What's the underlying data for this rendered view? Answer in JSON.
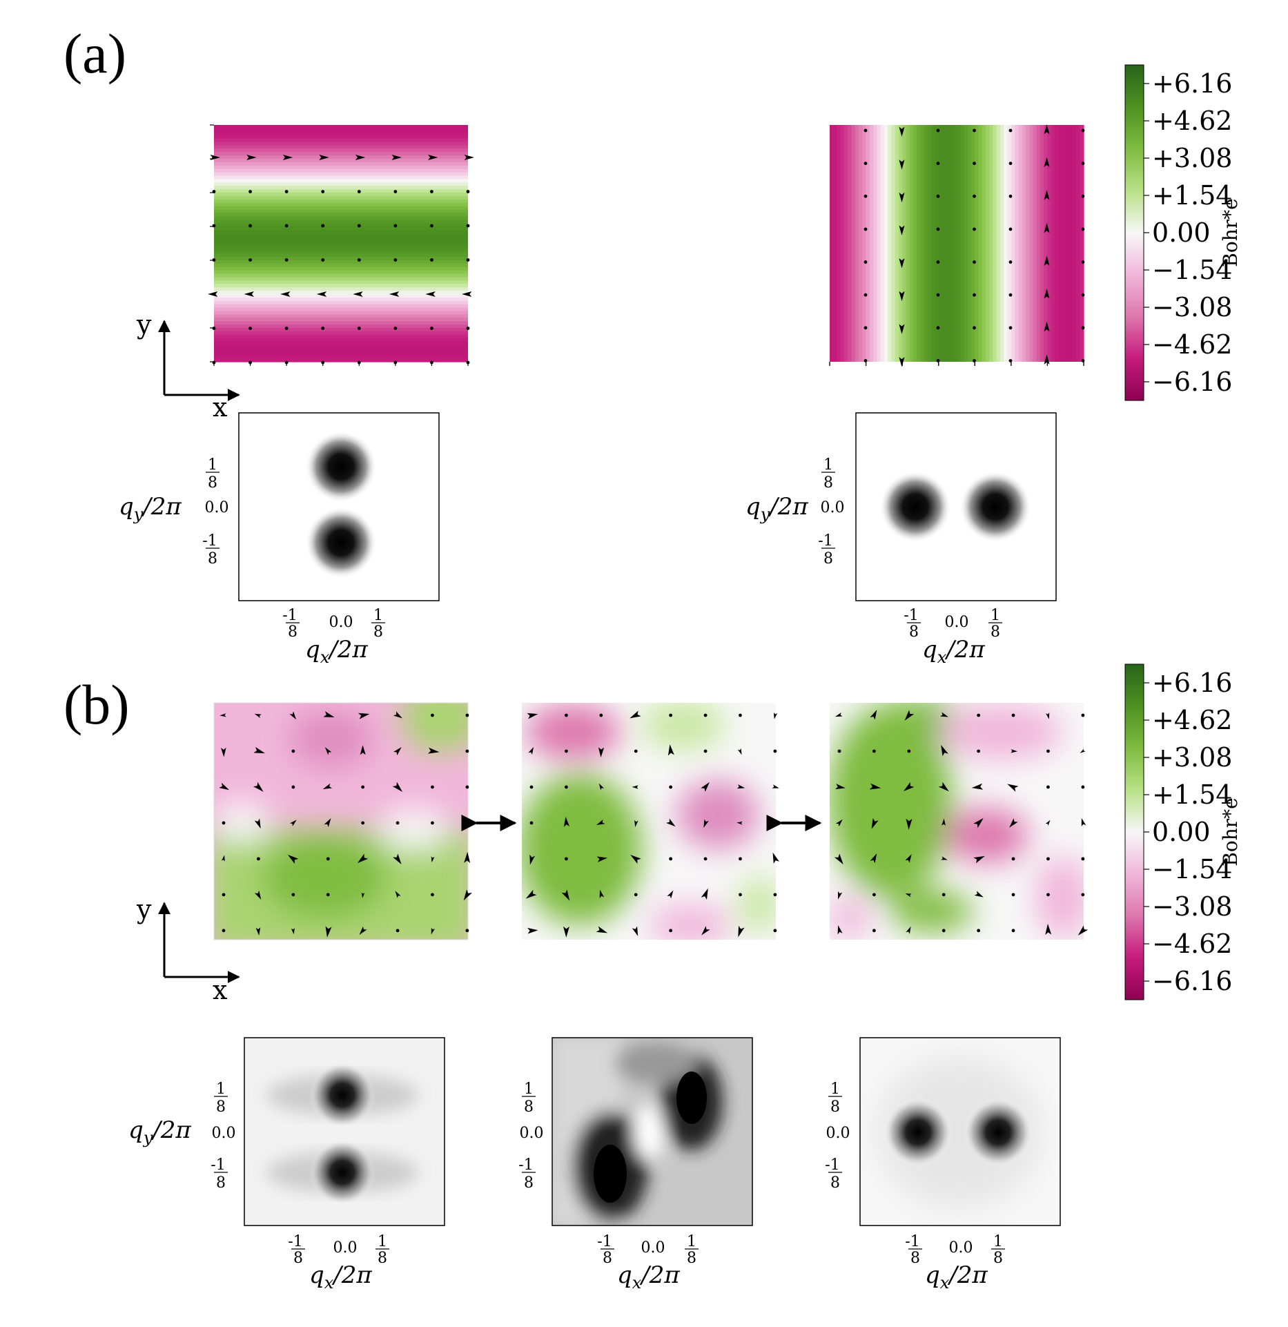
{
  "panel_labels": {
    "a": "(a)",
    "b": "(b)"
  },
  "axes_glyph": {
    "x": "x",
    "y": "y"
  },
  "colorbar": {
    "label": "Bohr*e",
    "ticks": [
      "+6.16",
      "+4.62",
      "+3.08",
      "+1.54",
      "0.00",
      "−1.54",
      "−3.08",
      "−4.62",
      "−6.16"
    ],
    "range": [
      -6.93,
      6.93
    ],
    "colormap": "PiYG",
    "colors": {
      "positive": "#276419",
      "mid": "#f7f7f7",
      "negative": "#8e0152"
    }
  },
  "fft_axes": {
    "xlabel": "q_x/2π",
    "ylabel": "q_y/2π",
    "tick_labels": {
      "neg": "-1/8",
      "zero": "0.0",
      "pos": "1/8"
    },
    "tick_values": [
      -0.125,
      0,
      0.125
    ]
  },
  "exchange_symbol": "↔",
  "chart_data": [
    {
      "id": "a-real-1",
      "type": "heatmap",
      "grid": "7x7 sites",
      "pattern": "stripes along x (y-modulated)",
      "period_sites": 8,
      "amplitude": 6.16,
      "arrows": "in-plane along ±x at nodal rows"
    },
    {
      "id": "a-real-2",
      "type": "heatmap",
      "grid": "7x7 sites",
      "pattern": "stripes along y (x-modulated)",
      "period_sites": 8,
      "amplitude": 6.16,
      "arrows": "in-plane along ±y at nodal columns"
    },
    {
      "id": "a-fft-1",
      "type": "heatmap",
      "peaks": [
        [
          0,
          0.125
        ],
        [
          0,
          -0.125
        ]
      ],
      "xlabel": "q_x/2π",
      "ylabel": "q_y/2π"
    },
    {
      "id": "a-fft-2",
      "type": "heatmap",
      "peaks": [
        [
          -0.125,
          0
        ],
        [
          0.125,
          0
        ]
      ],
      "xlabel": "q_x/2π",
      "ylabel": "q_y/2π"
    },
    {
      "id": "b-real-1",
      "type": "heatmap",
      "pattern": "disordered, predominantly y-modulated"
    },
    {
      "id": "b-real-2",
      "type": "heatmap",
      "pattern": "disordered, mixed domain"
    },
    {
      "id": "b-real-3",
      "type": "heatmap",
      "pattern": "disordered, predominantly x-modulated"
    },
    {
      "id": "b-fft-1",
      "type": "heatmap",
      "peaks": [
        [
          0,
          0.125
        ],
        [
          0,
          -0.125
        ]
      ]
    },
    {
      "id": "b-fft-2",
      "type": "heatmap",
      "peaks": [
        [
          -0.125,
          -0.125
        ],
        [
          0.125,
          0.125
        ]
      ],
      "note": "broad, mixed"
    },
    {
      "id": "b-fft-3",
      "type": "heatmap",
      "peaks": [
        [
          -0.125,
          0
        ],
        [
          0.125,
          0
        ]
      ]
    }
  ]
}
